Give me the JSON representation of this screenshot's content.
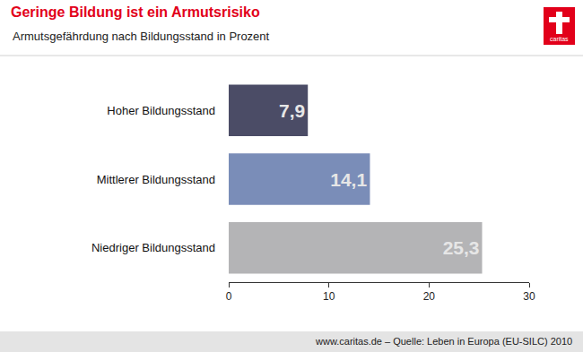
{
  "chart_data": {
    "type": "bar",
    "title": "Geringe Bildung ist ein Armutsrisiko",
    "subtitle": "Armutsgefährdung nach Bildungsstand in Prozent",
    "annotations": [
      "www.caritas.de – Quelle: Leben in Europa (EU-SILC) 2010",
      "caritas"
    ],
    "orientation": "horizontal",
    "categories": [
      "Hoher Bildungsstand",
      "Mittlerer Bildungsstand",
      "Niedriger Bildungsstand"
    ],
    "values": [
      7.9,
      14.1,
      25.3
    ],
    "value_labels": [
      "7,9",
      "14,1",
      "25,3"
    ],
    "colors": [
      "#4b4c66",
      "#7a8db8",
      "#b4b4b6"
    ],
    "data_labels": true,
    "xlim": [
      0,
      30
    ],
    "xticks": [
      0,
      10,
      20,
      30
    ],
    "grid": false
  }
}
